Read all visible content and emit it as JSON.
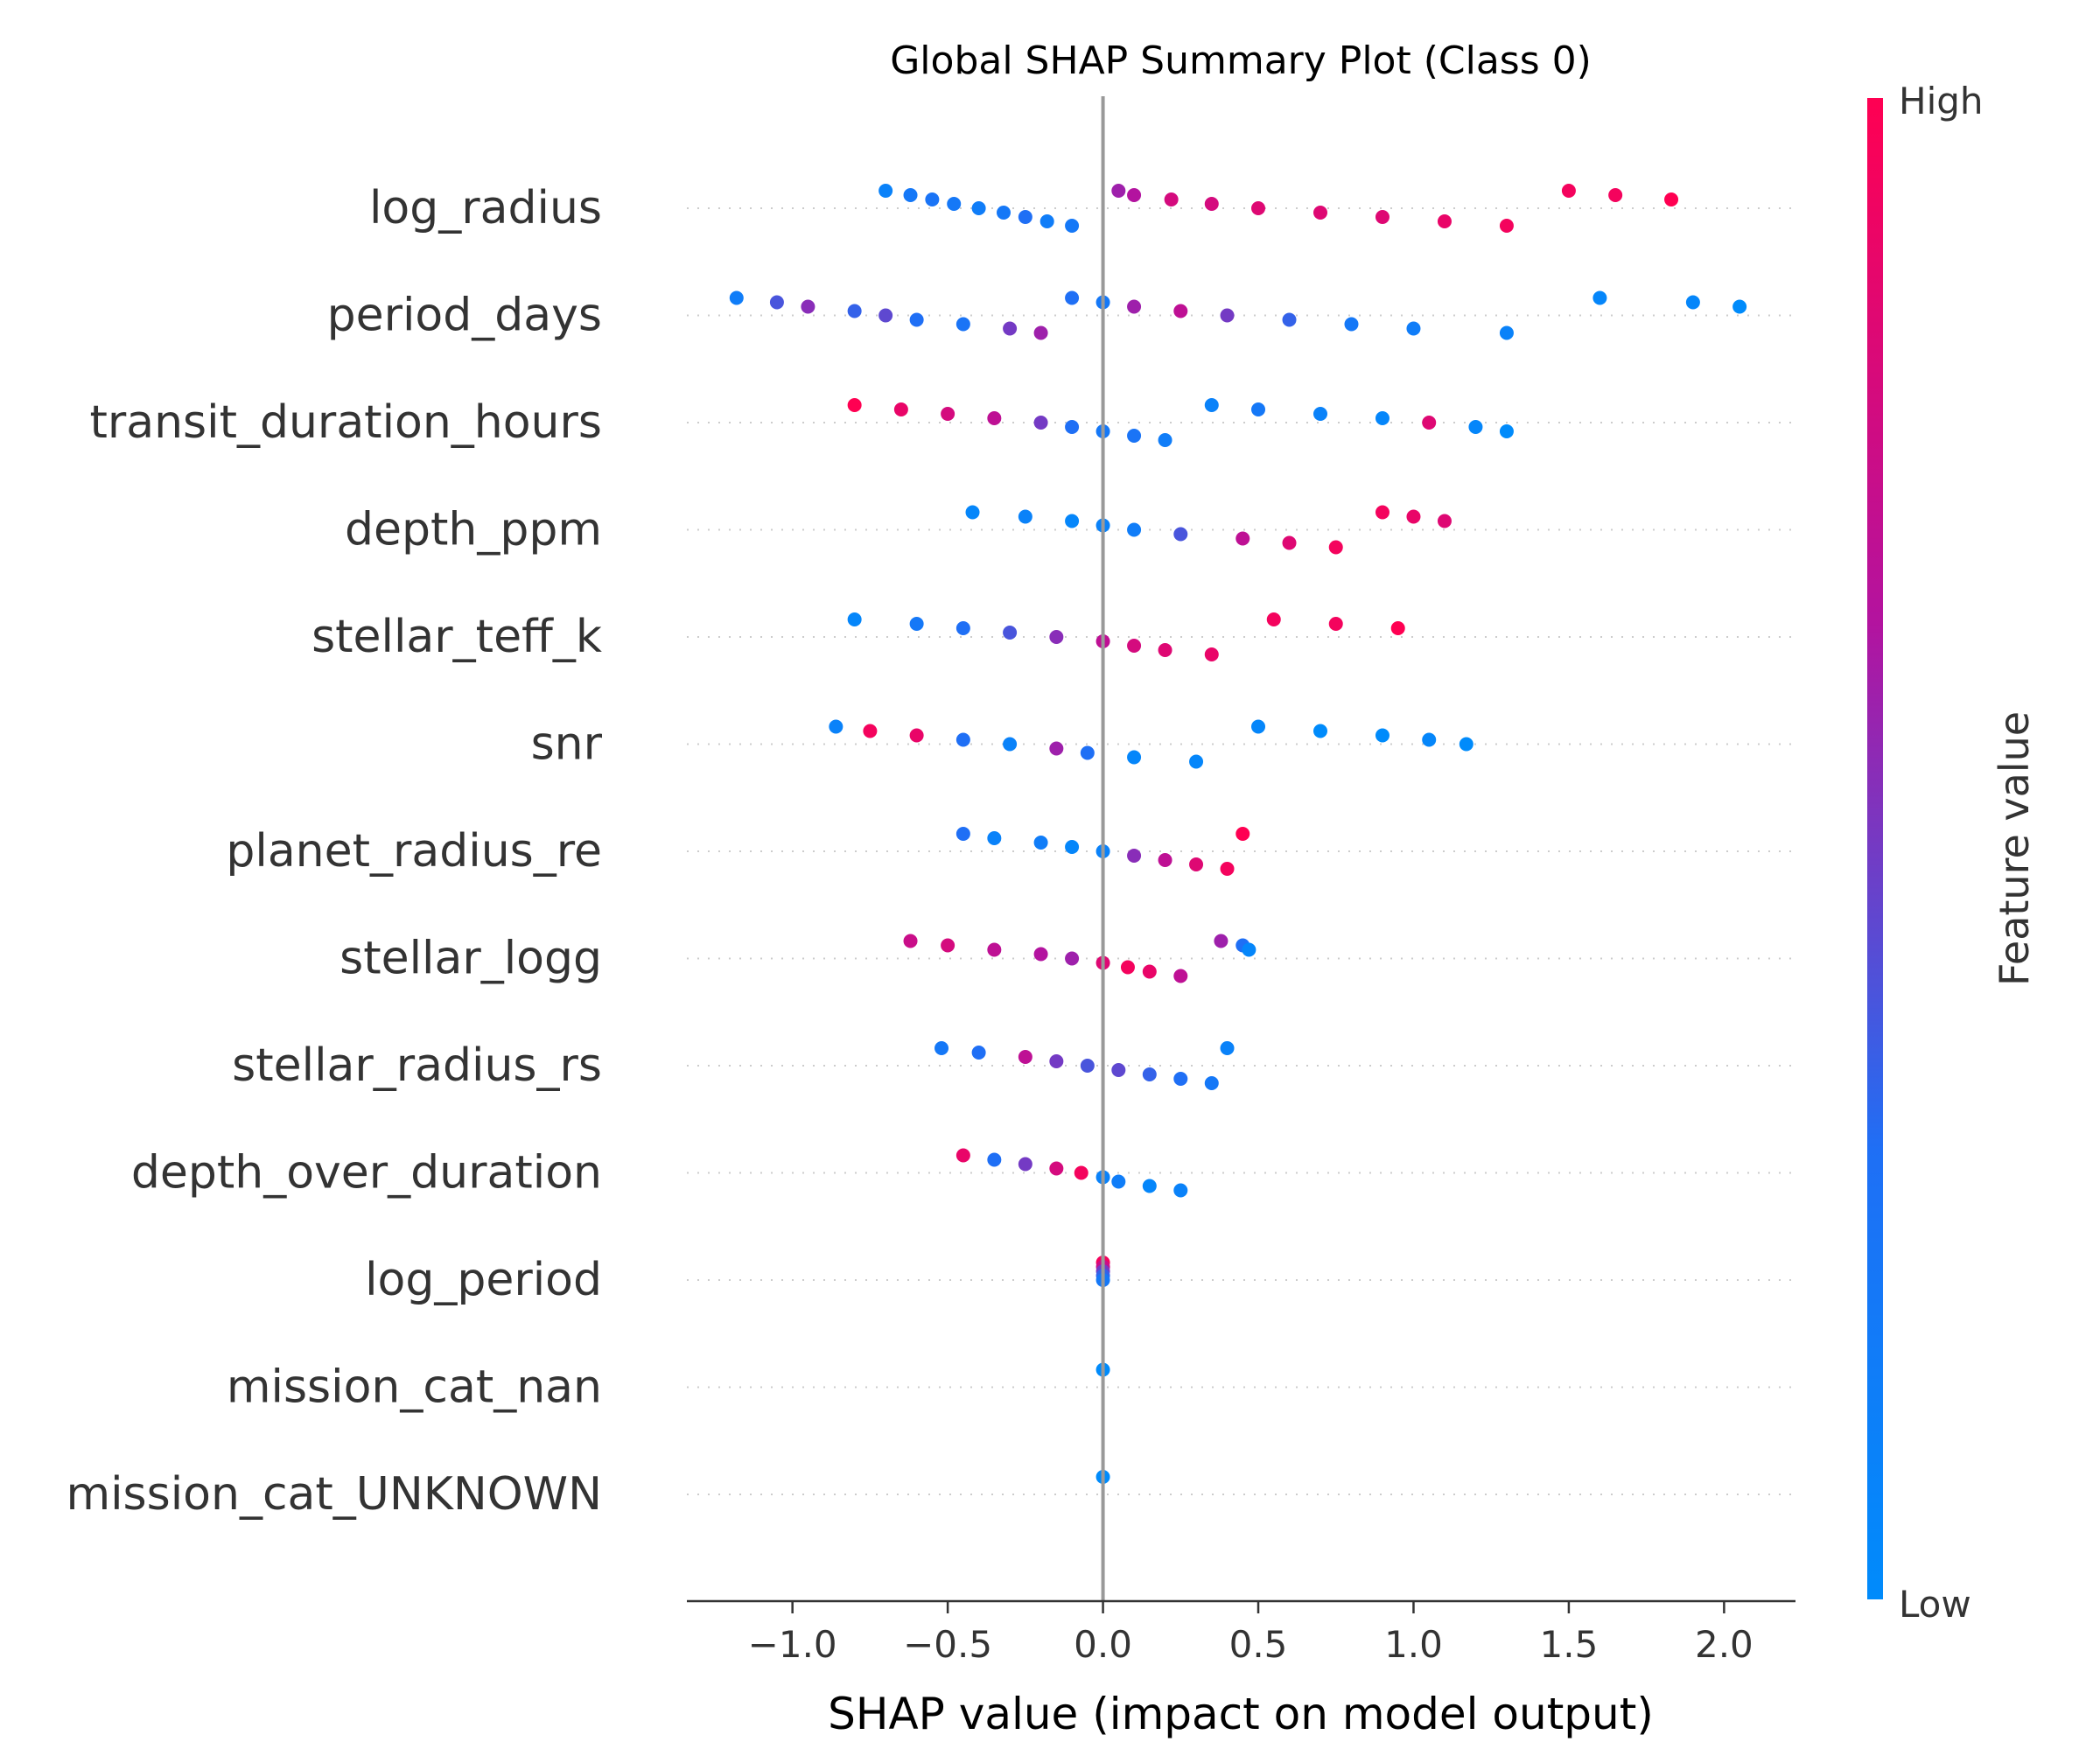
{
  "chart_data": {
    "type": "scatter",
    "subtype": "shap-beeswarm",
    "title": "Global SHAP Summary Plot (Class 0)",
    "xlabel": "SHAP value (impact on model output)",
    "xlim": [
      -1.34,
      2.23
    ],
    "xticks": [
      -1.0,
      -0.5,
      0.0,
      0.5,
      1.0,
      1.5,
      2.0
    ],
    "xtick_labels": [
      "−1.0",
      "−0.5",
      "0.0",
      "0.5",
      "1.0",
      "1.5",
      "2.0"
    ],
    "reference_line_x": 0.0,
    "colorbar": {
      "label": "Feature value",
      "high_label": "High",
      "low_label": "Low",
      "low_color": "#008bfb",
      "high_color": "#ff0052"
    },
    "features": [
      {
        "name": "log_radius",
        "points": [
          [
            -0.7,
            0.1
          ],
          [
            -0.62,
            0.2
          ],
          [
            -0.55,
            0.25
          ],
          [
            -0.48,
            0.2
          ],
          [
            -0.4,
            0.15
          ],
          [
            -0.32,
            0.2
          ],
          [
            -0.25,
            0.3
          ],
          [
            -0.18,
            0.15
          ],
          [
            -0.1,
            0.2
          ],
          [
            0.05,
            0.6
          ],
          [
            0.1,
            0.65
          ],
          [
            0.22,
            0.8
          ],
          [
            0.35,
            0.8
          ],
          [
            0.5,
            0.85
          ],
          [
            0.7,
            0.85
          ],
          [
            0.9,
            0.85
          ],
          [
            1.1,
            0.9
          ],
          [
            1.3,
            0.95
          ],
          [
            1.5,
            0.95
          ],
          [
            1.65,
            0.95
          ],
          [
            1.83,
            1.0
          ]
        ]
      },
      {
        "name": "period_days",
        "points": [
          [
            -1.18,
            0.15
          ],
          [
            -1.05,
            0.4
          ],
          [
            -0.95,
            0.55
          ],
          [
            -0.8,
            0.35
          ],
          [
            -0.7,
            0.45
          ],
          [
            -0.6,
            0.3
          ],
          [
            -0.45,
            0.25
          ],
          [
            -0.3,
            0.5
          ],
          [
            -0.2,
            0.6
          ],
          [
            -0.1,
            0.3
          ],
          [
            0.0,
            0.2
          ],
          [
            0.1,
            0.6
          ],
          [
            0.25,
            0.7
          ],
          [
            0.4,
            0.5
          ],
          [
            0.6,
            0.35
          ],
          [
            0.8,
            0.2
          ],
          [
            1.0,
            0.15
          ],
          [
            1.3,
            0.1
          ],
          [
            1.6,
            0.05
          ],
          [
            1.9,
            0.05
          ],
          [
            2.05,
            0.0
          ]
        ]
      },
      {
        "name": "transit_duration_hours",
        "points": [
          [
            -0.8,
            1.0
          ],
          [
            -0.65,
            0.9
          ],
          [
            -0.5,
            0.8
          ],
          [
            -0.35,
            0.7
          ],
          [
            -0.2,
            0.5
          ],
          [
            -0.1,
            0.3
          ],
          [
            0.0,
            0.2
          ],
          [
            0.1,
            0.25
          ],
          [
            0.2,
            0.15
          ],
          [
            0.35,
            0.1
          ],
          [
            0.5,
            0.2
          ],
          [
            0.7,
            0.1
          ],
          [
            0.9,
            0.05
          ],
          [
            1.05,
            0.85
          ],
          [
            1.2,
            0.05
          ],
          [
            1.3,
            0.0
          ]
        ]
      },
      {
        "name": "depth_ppm",
        "points": [
          [
            -0.42,
            0.05
          ],
          [
            -0.25,
            0.1
          ],
          [
            -0.1,
            0.05
          ],
          [
            0.0,
            0.1
          ],
          [
            0.1,
            0.15
          ],
          [
            0.25,
            0.4
          ],
          [
            0.45,
            0.7
          ],
          [
            0.6,
            0.85
          ],
          [
            0.75,
            0.95
          ],
          [
            0.9,
            0.95
          ],
          [
            1.0,
            0.9
          ],
          [
            1.1,
            0.85
          ]
        ]
      },
      {
        "name": "stellar_teff_k",
        "points": [
          [
            -0.8,
            0.05
          ],
          [
            -0.6,
            0.2
          ],
          [
            -0.45,
            0.3
          ],
          [
            -0.3,
            0.4
          ],
          [
            -0.15,
            0.55
          ],
          [
            0.0,
            0.7
          ],
          [
            0.1,
            0.8
          ],
          [
            0.2,
            0.85
          ],
          [
            0.35,
            0.9
          ],
          [
            0.55,
            0.95
          ],
          [
            0.75,
            0.95
          ],
          [
            0.95,
            1.0
          ]
        ]
      },
      {
        "name": "snr",
        "points": [
          [
            -0.86,
            0.1
          ],
          [
            -0.75,
            0.95
          ],
          [
            -0.6,
            0.9
          ],
          [
            -0.45,
            0.3
          ],
          [
            -0.3,
            0.1
          ],
          [
            -0.15,
            0.6
          ],
          [
            -0.05,
            0.3
          ],
          [
            0.1,
            0.05
          ],
          [
            0.3,
            0.05
          ],
          [
            0.5,
            0.05
          ],
          [
            0.7,
            0.0
          ],
          [
            0.9,
            0.0
          ],
          [
            1.05,
            0.05
          ],
          [
            1.17,
            0.0
          ]
        ]
      },
      {
        "name": "planet_radius_re",
        "points": [
          [
            -0.45,
            0.3
          ],
          [
            -0.35,
            0.1
          ],
          [
            -0.2,
            0.15
          ],
          [
            -0.1,
            0.05
          ],
          [
            0.0,
            0.1
          ],
          [
            0.1,
            0.55
          ],
          [
            0.2,
            0.7
          ],
          [
            0.3,
            0.85
          ],
          [
            0.4,
            0.95
          ],
          [
            0.45,
            1.0
          ]
        ]
      },
      {
        "name": "stellar_logg",
        "points": [
          [
            -0.62,
            0.75
          ],
          [
            -0.5,
            0.8
          ],
          [
            -0.35,
            0.7
          ],
          [
            -0.2,
            0.65
          ],
          [
            -0.1,
            0.6
          ],
          [
            0.0,
            0.85
          ],
          [
            0.08,
            0.95
          ],
          [
            0.15,
            0.9
          ],
          [
            0.25,
            0.7
          ],
          [
            0.38,
            0.6
          ],
          [
            0.45,
            0.3
          ],
          [
            0.47,
            0.05
          ]
        ]
      },
      {
        "name": "stellar_radius_rs",
        "points": [
          [
            -0.52,
            0.2
          ],
          [
            -0.4,
            0.3
          ],
          [
            -0.25,
            0.7
          ],
          [
            -0.15,
            0.5
          ],
          [
            -0.05,
            0.4
          ],
          [
            0.05,
            0.45
          ],
          [
            0.15,
            0.35
          ],
          [
            0.25,
            0.3
          ],
          [
            0.35,
            0.2
          ],
          [
            0.4,
            0.1
          ]
        ]
      },
      {
        "name": "depth_over_duration",
        "points": [
          [
            -0.45,
            0.9
          ],
          [
            -0.35,
            0.3
          ],
          [
            -0.25,
            0.5
          ],
          [
            -0.15,
            0.8
          ],
          [
            -0.07,
            0.95
          ],
          [
            0.0,
            0.1
          ],
          [
            0.05,
            0.15
          ],
          [
            0.15,
            0.05
          ],
          [
            0.25,
            0.1
          ]
        ]
      },
      {
        "name": "log_period",
        "points": [
          [
            0.0,
            0.95
          ],
          [
            0.0,
            0.75
          ],
          [
            0.0,
            0.5
          ],
          [
            0.0,
            0.35
          ],
          [
            0.0,
            0.2
          ]
        ]
      },
      {
        "name": "mission_cat_nan",
        "points": [
          [
            0.0,
            0.0
          ]
        ]
      },
      {
        "name": "mission_cat_UNKNOWN",
        "points": [
          [
            0.0,
            0.0
          ]
        ]
      }
    ]
  }
}
